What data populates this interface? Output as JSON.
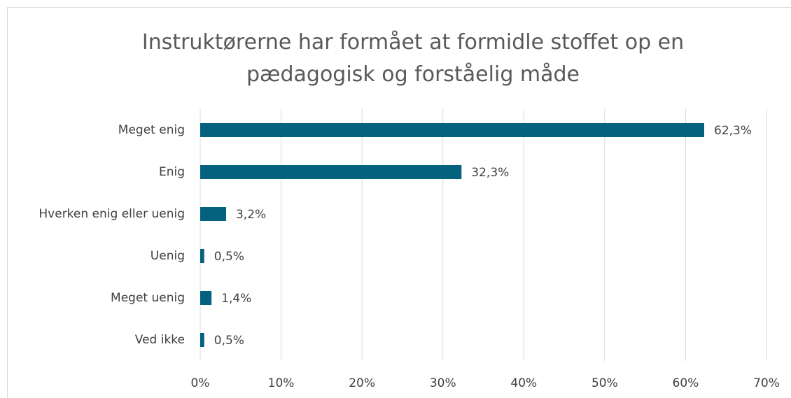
{
  "chart_data": {
    "type": "barh",
    "title": "Instruktørerne har formået at formidle stoffet op en pædagogisk og forståelig måde",
    "categories": [
      "Meget enig",
      "Enig",
      "Hverken enig eller uenig",
      "Uenig",
      "Meget uenig",
      "Ved ikke"
    ],
    "values": [
      62.3,
      32.3,
      3.2,
      0.5,
      1.4,
      0.5
    ],
    "value_labels": [
      "62,3%",
      "32,3%",
      "3,2%",
      "0,5%",
      "1,4%",
      "0,5%"
    ],
    "color": "#05627e",
    "xlim": [
      0,
      70
    ],
    "xticks": [
      {
        "value": 0,
        "label": "0%"
      },
      {
        "value": 10,
        "label": "10%"
      },
      {
        "value": 20,
        "label": "20%"
      },
      {
        "value": 30,
        "label": "30%"
      },
      {
        "value": 40,
        "label": "40%"
      },
      {
        "value": 50,
        "label": "50%"
      },
      {
        "value": 60,
        "label": "60%"
      },
      {
        "value": 70,
        "label": "70%"
      }
    ],
    "grid": true
  }
}
